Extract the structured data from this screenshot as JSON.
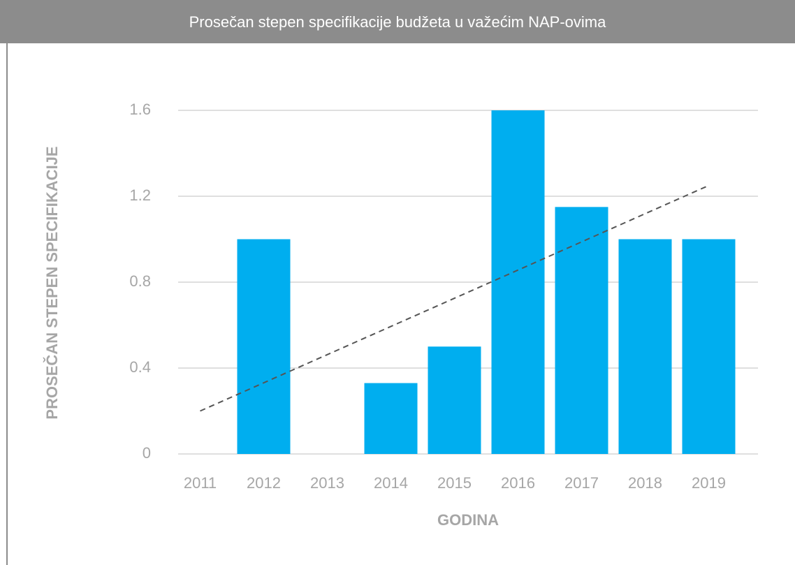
{
  "chart_data": {
    "type": "bar",
    "title": "Prosečan stepen specifikacije budžeta u važećim NAP-ovima",
    "x_label": "GODINA",
    "y_label": "PROSEČAN STEPEN SPECIFIKACIJE",
    "categories": [
      "2011",
      "2012",
      "2013",
      "2014",
      "2015",
      "2016",
      "2017",
      "2018",
      "2019"
    ],
    "values": [
      0,
      1.0,
      0,
      0.33,
      0.5,
      1.6,
      1.15,
      1.0,
      1.0
    ],
    "color": "#00aeef",
    "trendline": {
      "values": [
        0.2,
        1.25
      ],
      "color": "#555555"
    },
    "ylim": [
      0,
      1.6
    ],
    "yticks": [
      0,
      0.4,
      0.8,
      1.2,
      1.6
    ],
    "grid": true
  }
}
